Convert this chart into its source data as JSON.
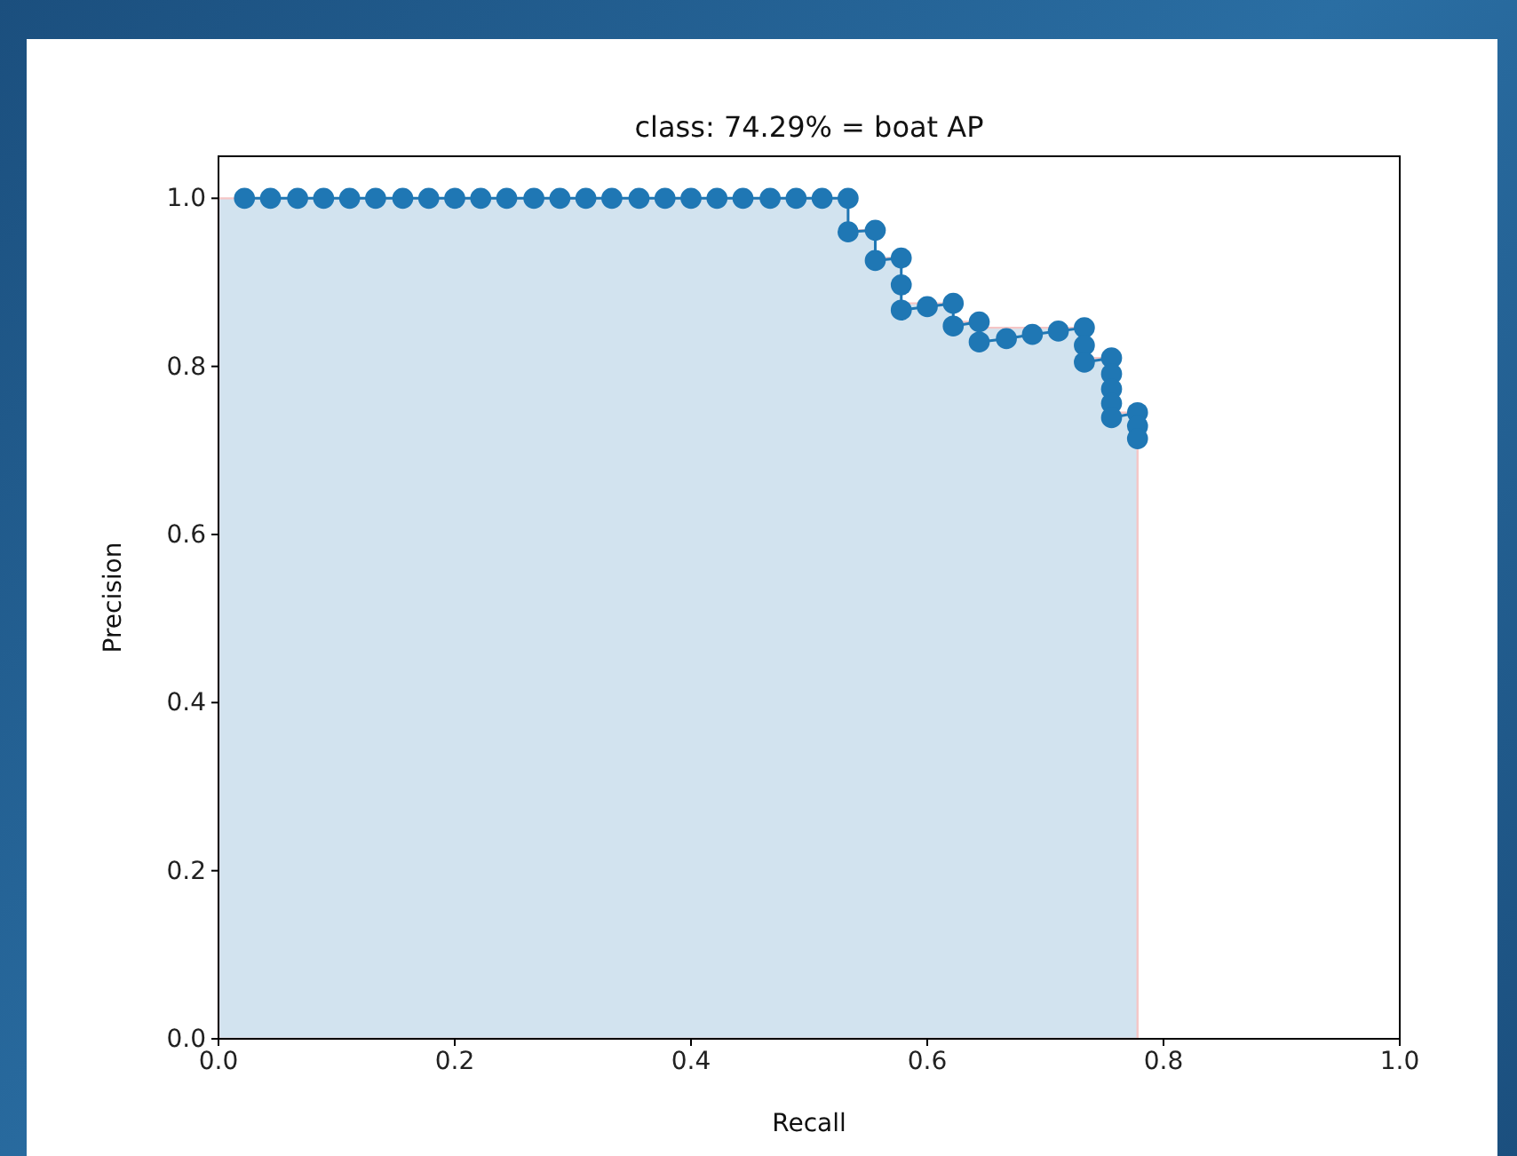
{
  "chart_data": {
    "type": "line",
    "title": "class: 74.29% = boat AP",
    "xlabel": "Recall",
    "ylabel": "Precision",
    "xlim": [
      0,
      1
    ],
    "ylim": [
      0,
      1.05
    ],
    "xticks": [
      {
        "value": 0,
        "label": "0.0"
      },
      {
        "value": 0.2,
        "label": "0.2"
      },
      {
        "value": 0.4,
        "label": "0.4"
      },
      {
        "value": 0.6,
        "label": "0.6"
      },
      {
        "value": 0.8,
        "label": "0.8"
      },
      {
        "value": 1,
        "label": "1.0"
      }
    ],
    "yticks": [
      {
        "value": 0,
        "label": "0.0"
      },
      {
        "value": 0.2,
        "label": "0.2"
      },
      {
        "value": 0.4,
        "label": "0.4"
      },
      {
        "value": 0.6,
        "label": "0.6"
      },
      {
        "value": 0.8,
        "label": "0.8"
      },
      {
        "value": 1,
        "label": "1.0"
      }
    ],
    "grid": false,
    "series": [
      {
        "type": "area",
        "color": "#d2e3ef",
        "x": [
          0,
          0.533,
          0.533,
          0.556,
          0.556,
          0.578,
          0.578,
          0.622,
          0.622,
          0.644,
          0.644,
          0.733,
          0.733,
          0.756,
          0.756,
          0.778,
          0.778
        ],
        "values": [
          1,
          1,
          0.962,
          0.962,
          0.929,
          0.929,
          0.875,
          0.875,
          0.853,
          0.853,
          0.846,
          0.846,
          0.81,
          0.81,
          0.745,
          0.745,
          0
        ]
      },
      {
        "color": "#1f77b4",
        "marker": "circle",
        "x": [
          0.022,
          0.044,
          0.067,
          0.089,
          0.111,
          0.133,
          0.156,
          0.178,
          0.2,
          0.222,
          0.244,
          0.267,
          0.289,
          0.311,
          0.333,
          0.356,
          0.378,
          0.4,
          0.422,
          0.444,
          0.467,
          0.489,
          0.511,
          0.533,
          0.533,
          0.556,
          0.556,
          0.578,
          0.578,
          0.578,
          0.6,
          0.622,
          0.622,
          0.644,
          0.644,
          0.667,
          0.689,
          0.711,
          0.733,
          0.733,
          0.733,
          0.756,
          0.756,
          0.756,
          0.756,
          0.756,
          0.778,
          0.778,
          0.778
        ],
        "values": [
          1,
          1,
          1,
          1,
          1,
          1,
          1,
          1,
          1,
          1,
          1,
          1,
          1,
          1,
          1,
          1,
          1,
          1,
          1,
          1,
          1,
          1,
          1,
          1,
          0.96,
          0.962,
          0.926,
          0.929,
          0.897,
          0.867,
          0.871,
          0.875,
          0.848,
          0.853,
          0.829,
          0.833,
          0.838,
          0.842,
          0.846,
          0.825,
          0.805,
          0.81,
          0.791,
          0.773,
          0.756,
          0.739,
          0.745,
          0.729,
          0.714
        ]
      }
    ]
  }
}
